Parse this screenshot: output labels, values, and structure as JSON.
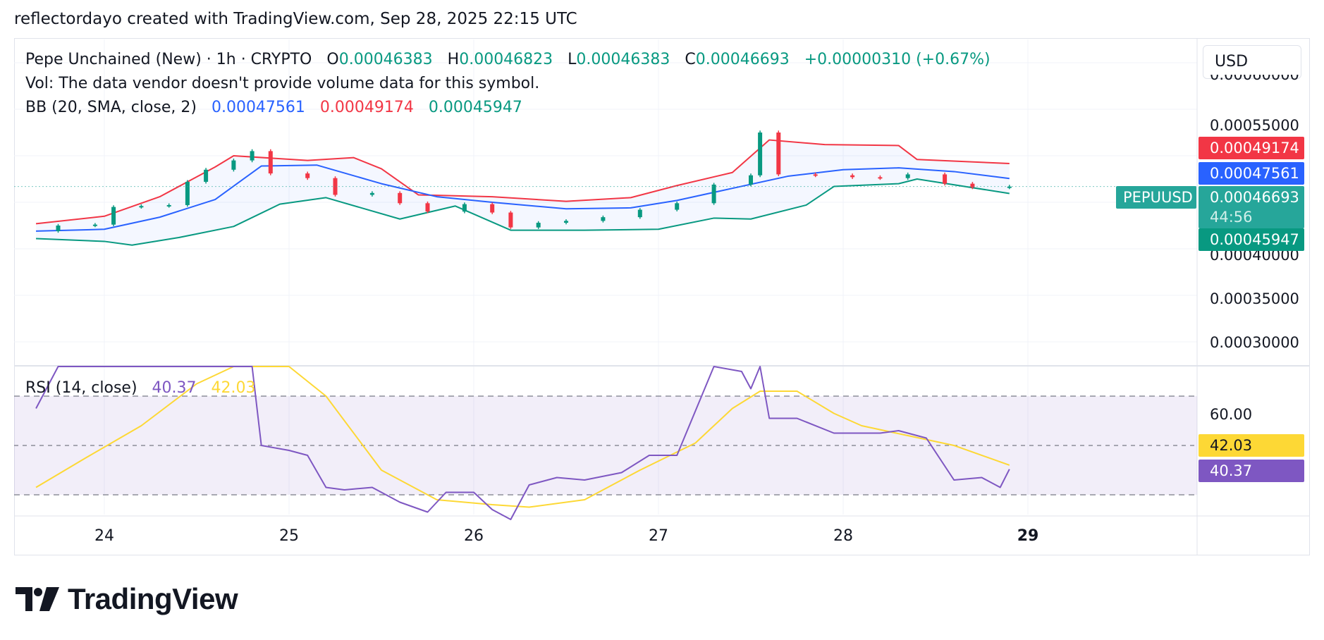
{
  "header": {
    "attribution": "reflectordayo created with TradingView.com, Sep 28, 2025 22:15 UTC"
  },
  "legend": {
    "symbol": "Pepe Unchained (New) · 1h · CRYPTO",
    "o_label": "O",
    "o_value": "0.00046383",
    "h_label": "H",
    "h_value": "0.00046823",
    "l_label": "L",
    "l_value": "0.00046383",
    "c_label": "C",
    "c_value": "0.00046693",
    "change": "+0.00000310 (+0.67%)",
    "vol_note": "Vol: The data vendor doesn't provide volume data for this symbol.",
    "bb_label": "BB (20, SMA, close, 2)",
    "bb_basis": "0.00047561",
    "bb_upper": "0.00049174",
    "bb_lower": "0.00045947"
  },
  "rsi_legend": {
    "label": "RSI (14, close)",
    "rsi_value": "40.37",
    "ma_value": "42.03"
  },
  "currency_button": "USD",
  "price_axis": {
    "partial_top": "0.00060000",
    "ticks": [
      "0.00055000",
      "0.00040000",
      "0.00035000",
      "0.00030000"
    ]
  },
  "rsi_axis": {
    "ticks": [
      "60.00"
    ]
  },
  "tags": {
    "upper": "0.00049174",
    "basis": "0.00047561",
    "symbol": "PEPUUSD",
    "last": "0.00046693",
    "countdown": "44:56",
    "lower": "0.00045947",
    "rsi_ma": "42.03",
    "rsi": "40.37"
  },
  "x_axis": {
    "labels": [
      "24",
      "25",
      "26",
      "27",
      "28",
      "29"
    ]
  },
  "brand": {
    "name": "TradingView"
  },
  "colors": {
    "up": "#089981",
    "down": "#f23645",
    "bb_basis": "#2962ff",
    "bb_upper": "#f23645",
    "bb_lower": "#089981",
    "rsi": "#7e57c2",
    "rsi_ma": "#fdd835"
  },
  "chart_data": [
    {
      "type": "candlestick",
      "title": "Pepe Unchained (New) · 1h · CRYPTO",
      "ylim": [
        0.000275,
        0.000625
      ],
      "x_range": [
        "Sep 23 19:00",
        "Sep 29 14:00"
      ],
      "series": [
        {
          "name": "BB basis",
          "points": [
            [
              23.63,
              0.000419
            ],
            [
              24.0,
              0.000421
            ],
            [
              24.3,
              0.000434
            ],
            [
              24.6,
              0.000453
            ],
            [
              24.85,
              0.000489
            ],
            [
              25.15,
              0.00049
            ],
            [
              25.5,
              0.00047
            ],
            [
              25.8,
              0.000456
            ],
            [
              26.1,
              0.00045
            ],
            [
              26.5,
              0.000443
            ],
            [
              26.85,
              0.000444
            ],
            [
              27.1,
              0.000452
            ],
            [
              27.4,
              0.000465
            ],
            [
              27.7,
              0.000478
            ],
            [
              28.0,
              0.000485
            ],
            [
              28.3,
              0.000487
            ],
            [
              28.6,
              0.000483
            ],
            [
              28.9,
              0.0004756
            ]
          ]
        },
        {
          "name": "BB upper",
          "points": [
            [
              23.63,
              0.000427
            ],
            [
              24.0,
              0.000435
            ],
            [
              24.3,
              0.000456
            ],
            [
              24.6,
              0.000488
            ],
            [
              24.7,
              0.0005
            ],
            [
              25.1,
              0.000495
            ],
            [
              25.35,
              0.000498
            ],
            [
              25.5,
              0.000486
            ],
            [
              25.7,
              0.000458
            ],
            [
              26.1,
              0.000456
            ],
            [
              26.5,
              0.000451
            ],
            [
              26.85,
              0.000455
            ],
            [
              27.1,
              0.000468
            ],
            [
              27.4,
              0.000482
            ],
            [
              27.6,
              0.000517
            ],
            [
              27.9,
              0.000512
            ],
            [
              28.3,
              0.000511
            ],
            [
              28.4,
              0.000496
            ],
            [
              28.9,
              0.0004917
            ]
          ]
        },
        {
          "name": "BB lower",
          "points": [
            [
              23.63,
              0.000411
            ],
            [
              24.0,
              0.000408
            ],
            [
              24.15,
              0.000404
            ],
            [
              24.4,
              0.000412
            ],
            [
              24.7,
              0.000424
            ],
            [
              24.95,
              0.000448
            ],
            [
              25.2,
              0.000455
            ],
            [
              25.6,
              0.000432
            ],
            [
              25.9,
              0.000446
            ],
            [
              26.2,
              0.00042
            ],
            [
              26.6,
              0.00042
            ],
            [
              27.0,
              0.000421
            ],
            [
              27.3,
              0.000433
            ],
            [
              27.5,
              0.000432
            ],
            [
              27.8,
              0.000447
            ],
            [
              27.95,
              0.000467
            ],
            [
              28.3,
              0.00047
            ],
            [
              28.4,
              0.000475
            ],
            [
              28.9,
              0.0004595
            ]
          ]
        },
        {
          "name": "PEPUUSD close",
          "points": [
            [
              23.63,
              0.000419
            ],
            [
              23.75,
              0.000425
            ],
            [
              23.95,
              0.000426
            ],
            [
              24.05,
              0.000445
            ],
            [
              24.2,
              0.000446
            ],
            [
              24.35,
              0.000447
            ],
            [
              24.45,
              0.000472
            ],
            [
              24.55,
              0.000485
            ],
            [
              24.7,
              0.000495
            ],
            [
              24.8,
              0.000505
            ],
            [
              24.9,
              0.000481
            ],
            [
              25.1,
              0.000476
            ],
            [
              25.25,
              0.000458
            ],
            [
              25.45,
              0.00046
            ],
            [
              25.6,
              0.000449
            ],
            [
              25.75,
              0.00044
            ],
            [
              25.95,
              0.000448
            ],
            [
              26.1,
              0.000439
            ],
            [
              26.2,
              0.000423
            ],
            [
              26.35,
              0.000428
            ],
            [
              26.5,
              0.00043
            ],
            [
              26.7,
              0.000434
            ],
            [
              26.9,
              0.000442
            ],
            [
              27.1,
              0.000449
            ],
            [
              27.3,
              0.000469
            ],
            [
              27.5,
              0.000479
            ],
            [
              27.55,
              0.000525
            ],
            [
              27.65,
              0.00048
            ],
            [
              27.85,
              0.000479
            ],
            [
              28.05,
              0.000477
            ],
            [
              28.2,
              0.000476
            ],
            [
              28.35,
              0.00048
            ],
            [
              28.55,
              0.00047
            ],
            [
              28.7,
              0.000466
            ],
            [
              28.9,
              0.0004669
            ]
          ]
        }
      ]
    },
    {
      "type": "line",
      "title": "RSI (14, close)",
      "ylim": [
        22,
        82
      ],
      "series": [
        {
          "name": "RSI",
          "points": [
            [
              23.63,
              65
            ],
            [
              23.75,
              82
            ],
            [
              24.0,
              82
            ],
            [
              24.6,
              82
            ],
            [
              24.8,
              82
            ],
            [
              24.85,
              50
            ],
            [
              25.0,
              48
            ],
            [
              25.1,
              46
            ],
            [
              25.2,
              33
            ],
            [
              25.3,
              32
            ],
            [
              25.45,
              33
            ],
            [
              25.6,
              27
            ],
            [
              25.75,
              23
            ],
            [
              25.85,
              31
            ],
            [
              26.0,
              31
            ],
            [
              26.1,
              24
            ],
            [
              26.2,
              20
            ],
            [
              26.3,
              34
            ],
            [
              26.45,
              37
            ],
            [
              26.6,
              36
            ],
            [
              26.8,
              39
            ],
            [
              26.95,
              46
            ],
            [
              27.1,
              46
            ],
            [
              27.3,
              82
            ],
            [
              27.45,
              80
            ],
            [
              27.5,
              73
            ],
            [
              27.55,
              82
            ],
            [
              27.6,
              61
            ],
            [
              27.75,
              61
            ],
            [
              27.95,
              55
            ],
            [
              28.05,
              55
            ],
            [
              28.2,
              55
            ],
            [
              28.3,
              56
            ],
            [
              28.45,
              53
            ],
            [
              28.6,
              36
            ],
            [
              28.75,
              37
            ],
            [
              28.85,
              33
            ],
            [
              28.9,
              40.37
            ]
          ]
        },
        {
          "name": "RSI MA",
          "points": [
            [
              23.63,
              33
            ],
            [
              23.9,
              45
            ],
            [
              24.2,
              58
            ],
            [
              24.5,
              75
            ],
            [
              24.7,
              82
            ],
            [
              25.0,
              82
            ],
            [
              25.2,
              70
            ],
            [
              25.5,
              40
            ],
            [
              25.8,
              28
            ],
            [
              26.1,
              26
            ],
            [
              26.3,
              25
            ],
            [
              26.6,
              28
            ],
            [
              26.9,
              40
            ],
            [
              27.2,
              51
            ],
            [
              27.4,
              65
            ],
            [
              27.55,
              72
            ],
            [
              27.75,
              72
            ],
            [
              27.95,
              63
            ],
            [
              28.1,
              58
            ],
            [
              28.35,
              54
            ],
            [
              28.6,
              50
            ],
            [
              28.9,
              42.03
            ]
          ]
        }
      ]
    }
  ]
}
